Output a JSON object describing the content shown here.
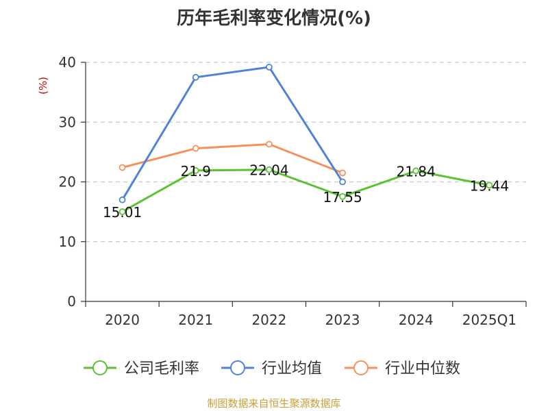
{
  "chart_data": {
    "type": "line",
    "title": "历年毛利率变化情况(%)",
    "ylabel": "(%)",
    "categories": [
      "2020",
      "2021",
      "2022",
      "2023",
      "2024",
      "2025Q1"
    ],
    "ylim": [
      0,
      40
    ],
    "yticks": [
      0,
      10,
      20,
      30,
      40
    ],
    "grid": true,
    "legend_position": "bottom",
    "series": [
      {
        "name": "公司毛利率",
        "color": "#5cc234",
        "values": [
          15.01,
          21.9,
          22.04,
          17.55,
          21.84,
          19.44
        ],
        "labels": [
          "15.01",
          "21.9",
          "22.04",
          "17.55",
          "21.84",
          "19.44"
        ]
      },
      {
        "name": "行业均值",
        "color": "#4f82d8",
        "values": [
          17.0,
          37.5,
          39.2,
          20.0,
          null,
          null
        ]
      },
      {
        "name": "行业中位数",
        "color": "#f4915c",
        "values": [
          22.4,
          25.6,
          26.3,
          21.5,
          null,
          null
        ]
      }
    ]
  },
  "source": "制图数据来自恒生聚源数据库"
}
